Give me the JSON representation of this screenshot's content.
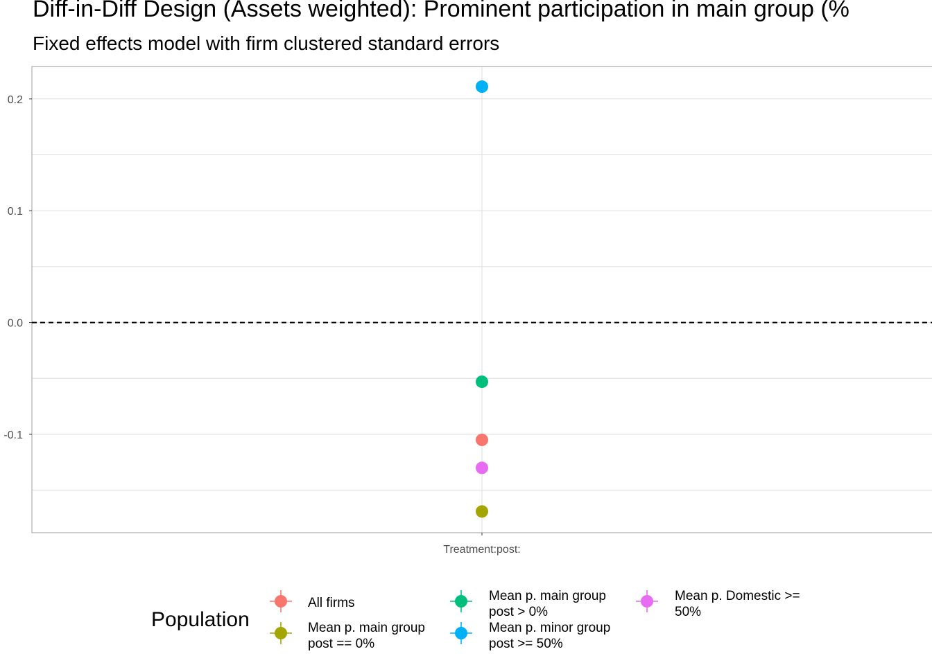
{
  "chart_data": {
    "type": "scatter",
    "title": "Diff-in-Diff Design (Assets weighted): Prominent participation in main group (%",
    "subtitle": "Fixed effects model with firm clustered standard errors",
    "xlabel": "",
    "ylabel": "",
    "x_categories": [
      "Treatment:post:"
    ],
    "y_ticks": [
      0.2,
      0.1,
      0.0,
      -0.1
    ],
    "y_tick_labels": [
      "0.2",
      "0.1",
      "0.0",
      "-0.1"
    ],
    "ylim": [
      -0.188,
      0.229
    ],
    "reference_line": {
      "y": 0,
      "style": "dashed",
      "color": "#000000"
    },
    "grid": true,
    "legend": {
      "title": "Population",
      "position": "bottom"
    },
    "series": [
      {
        "name": "All firms",
        "color": "#F8766D",
        "x": "Treatment:post:",
        "y": -0.105
      },
      {
        "name": "Mean p. main group post == 0%",
        "color": "#A3A500",
        "x": "Treatment:post:",
        "y": -0.169
      },
      {
        "name": "Mean p. main group post > 0%",
        "color": "#00BF7D",
        "x": "Treatment:post:",
        "y": -0.053
      },
      {
        "name": "Mean p. minor group post >= 50%",
        "color": "#00B0F6",
        "x": "Treatment:post:",
        "y": 0.211
      },
      {
        "name": "Mean p. Domestic >= 50%",
        "color": "#E76BF3",
        "x": "Treatment:post:",
        "y": -0.13
      }
    ]
  },
  "legend_items": [
    {
      "lines": [
        "All firms"
      ],
      "color": "#F8766D"
    },
    {
      "lines": [
        "Mean p. main group",
        "post == 0%"
      ],
      "color": "#A3A500"
    },
    {
      "lines": [
        "Mean p. main group",
        "post > 0%"
      ],
      "color": "#00BF7D"
    },
    {
      "lines": [
        "Mean p. minor group",
        "post >= 50%"
      ],
      "color": "#00B0F6"
    },
    {
      "lines": [
        "Mean p. Domestic >=",
        "50%"
      ],
      "color": "#E76BF3"
    }
  ]
}
